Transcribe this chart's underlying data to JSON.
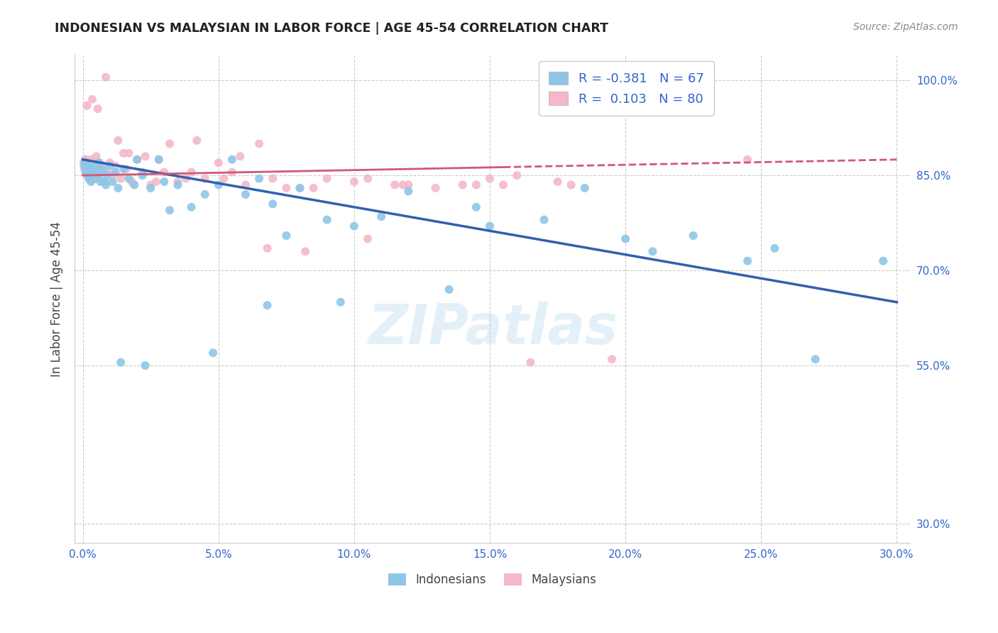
{
  "title": "INDONESIAN VS MALAYSIAN IN LABOR FORCE | AGE 45-54 CORRELATION CHART",
  "source": "Source: ZipAtlas.com",
  "ylabel": "In Labor Force | Age 45-54",
  "x_tick_labels": [
    "0.0%",
    "5.0%",
    "10.0%",
    "15.0%",
    "20.0%",
    "25.0%",
    "30.0%"
  ],
  "x_tick_values": [
    0.0,
    5.0,
    10.0,
    15.0,
    20.0,
    25.0,
    30.0
  ],
  "y_tick_labels": [
    "30.0%",
    "55.0%",
    "70.0%",
    "85.0%",
    "100.0%"
  ],
  "y_tick_values": [
    30.0,
    55.0,
    70.0,
    85.0,
    100.0
  ],
  "xlim": [
    -0.3,
    30.5
  ],
  "ylim": [
    27.0,
    104.0
  ],
  "R_indonesian": -0.381,
  "N_indonesian": 67,
  "R_malaysian": 0.103,
  "N_malaysian": 80,
  "color_indonesian": "#8ec6e8",
  "color_malaysian": "#f4b8c8",
  "color_trend_indonesian": "#3060b0",
  "color_trend_malaysian": "#d05878",
  "legend_label_indonesian": "Indonesians",
  "legend_label_malaysian": "Malaysians",
  "watermark": "ZIPatlas",
  "trend_indo_x0": 0.0,
  "trend_indo_y0": 87.5,
  "trend_indo_x1": 30.0,
  "trend_indo_y1": 65.0,
  "trend_malay_solid_x0": 0.0,
  "trend_malay_solid_y0": 85.0,
  "trend_malay_solid_x1": 15.5,
  "trend_malay_solid_y1": 86.3,
  "trend_malay_dash_x0": 15.5,
  "trend_malay_dash_y0": 86.3,
  "trend_malay_dash_x1": 30.0,
  "trend_malay_dash_y1": 87.5,
  "indonesian_x": [
    0.05,
    0.08,
    0.1,
    0.12,
    0.15,
    0.18,
    0.2,
    0.22,
    0.25,
    0.28,
    0.3,
    0.35,
    0.4,
    0.45,
    0.5,
    0.55,
    0.6,
    0.65,
    0.7,
    0.75,
    0.8,
    0.85,
    0.9,
    1.0,
    1.1,
    1.2,
    1.3,
    1.5,
    1.7,
    1.9,
    2.0,
    2.2,
    2.5,
    2.8,
    3.0,
    3.5,
    4.0,
    4.5,
    5.0,
    5.5,
    6.0,
    6.5,
    7.0,
    8.0,
    9.0,
    10.0,
    11.0,
    12.0,
    13.5,
    14.5,
    15.0,
    17.0,
    18.5,
    20.0,
    21.0,
    22.5,
    24.5,
    25.5,
    27.0,
    29.5,
    1.4,
    2.3,
    3.2,
    4.8,
    6.8,
    7.5,
    9.5
  ],
  "indonesian_y": [
    86.5,
    87.0,
    85.5,
    87.0,
    86.0,
    85.0,
    86.5,
    84.5,
    86.0,
    85.5,
    84.0,
    86.0,
    85.5,
    84.5,
    86.5,
    85.0,
    87.0,
    84.0,
    86.0,
    85.5,
    84.0,
    83.5,
    85.0,
    86.5,
    84.0,
    85.5,
    83.0,
    86.0,
    84.5,
    83.5,
    87.5,
    85.0,
    83.0,
    87.5,
    84.0,
    83.5,
    80.0,
    82.0,
    83.5,
    87.5,
    82.0,
    84.5,
    80.5,
    83.0,
    78.0,
    77.0,
    78.5,
    82.5,
    67.0,
    80.0,
    77.0,
    78.0,
    83.0,
    75.0,
    73.0,
    75.5,
    71.5,
    73.5,
    56.0,
    71.5,
    55.5,
    55.0,
    79.5,
    57.0,
    64.5,
    75.5,
    65.0
  ],
  "malaysian_x": [
    0.03,
    0.06,
    0.08,
    0.1,
    0.12,
    0.14,
    0.16,
    0.18,
    0.2,
    0.22,
    0.25,
    0.28,
    0.3,
    0.35,
    0.4,
    0.45,
    0.5,
    0.55,
    0.6,
    0.65,
    0.7,
    0.75,
    0.8,
    0.9,
    1.0,
    1.1,
    1.2,
    1.4,
    1.6,
    1.8,
    2.0,
    2.2,
    2.5,
    2.8,
    3.0,
    3.5,
    4.0,
    4.5,
    5.0,
    5.5,
    6.0,
    7.0,
    8.0,
    9.0,
    10.5,
    12.0,
    14.0,
    15.0,
    16.5,
    18.0,
    1.3,
    1.7,
    2.3,
    3.2,
    4.2,
    5.8,
    6.5,
    7.5,
    8.5,
    10.0,
    11.5,
    13.0,
    15.5,
    0.15,
    0.35,
    0.55,
    0.85,
    1.5,
    2.7,
    3.8,
    5.2,
    6.8,
    8.2,
    10.5,
    11.8,
    14.5,
    16.0,
    17.5,
    19.5,
    24.5
  ],
  "malaysian_y": [
    87.0,
    86.0,
    87.5,
    85.5,
    87.5,
    86.5,
    87.0,
    85.5,
    87.0,
    85.0,
    87.0,
    86.0,
    87.5,
    85.5,
    86.5,
    84.5,
    88.0,
    85.0,
    87.0,
    86.0,
    84.5,
    86.5,
    84.0,
    85.5,
    87.0,
    85.0,
    86.5,
    84.5,
    86.0,
    84.0,
    87.5,
    85.5,
    83.5,
    87.5,
    85.5,
    84.0,
    85.5,
    84.5,
    87.0,
    85.5,
    83.5,
    84.5,
    83.0,
    84.5,
    84.5,
    83.5,
    83.5,
    84.5,
    55.5,
    83.5,
    90.5,
    88.5,
    88.0,
    90.0,
    90.5,
    88.0,
    90.0,
    83.0,
    83.0,
    84.0,
    83.5,
    83.0,
    83.5,
    96.0,
    97.0,
    95.5,
    100.5,
    88.5,
    84.0,
    84.5,
    84.5,
    73.5,
    73.0,
    75.0,
    83.5,
    83.5,
    85.0,
    84.0,
    56.0,
    87.5
  ]
}
